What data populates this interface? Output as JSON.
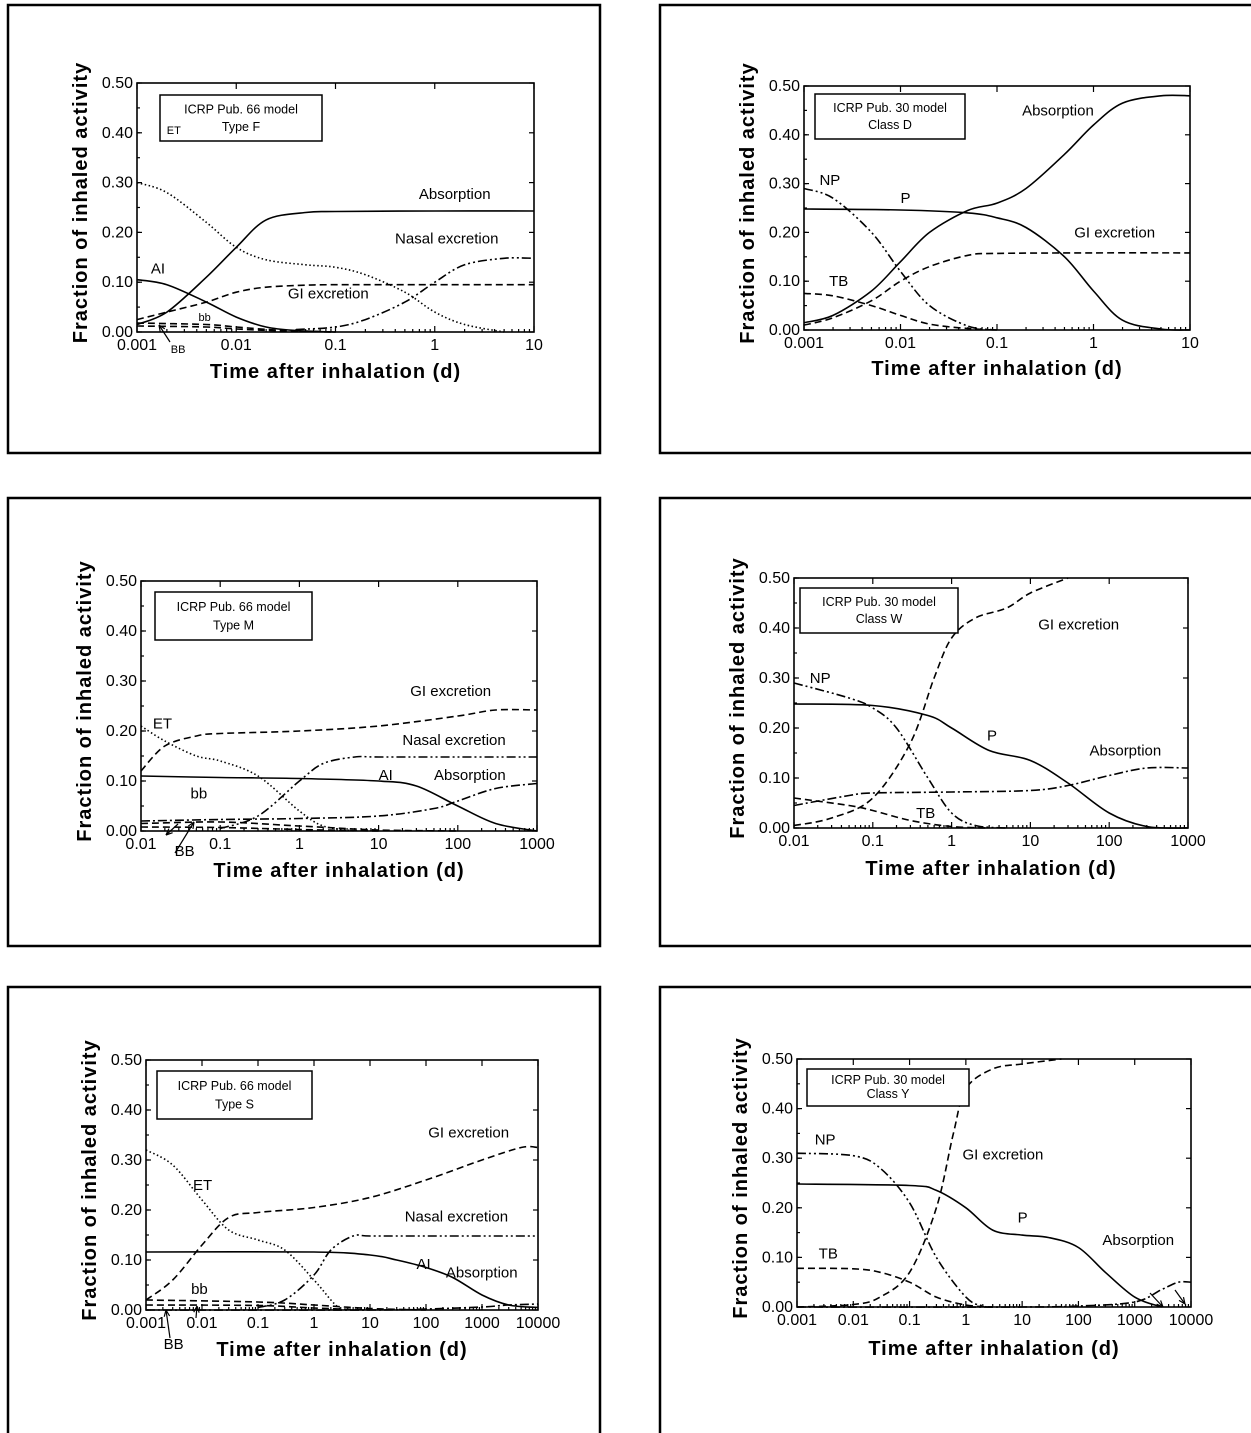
{
  "chart_data": [
    {
      "type": "line",
      "legend": [
        "ICRP Pub. 66 model",
        "Type F"
      ],
      "xlabel": "Time after inhalation (d)",
      "ylabel": "Fraction of inhaled activity",
      "xscale": "log",
      "xlim": [
        0.001,
        10
      ],
      "ylim": [
        0,
        0.5
      ],
      "xticks": [
        "0.001",
        "0.01",
        "0.1",
        "1",
        "10"
      ],
      "yticks": [
        "0.00",
        "0.10",
        "0.20",
        "0.30",
        "0.40",
        "0.50"
      ],
      "series": [
        {
          "name": "ET",
          "style": "dotted",
          "x": [
            0.001,
            0.002,
            0.005,
            0.01,
            0.02,
            0.05,
            0.1,
            0.2,
            0.5,
            1,
            2,
            5
          ],
          "y": [
            0.3,
            0.28,
            0.22,
            0.17,
            0.145,
            0.135,
            0.13,
            0.115,
            0.08,
            0.04,
            0.015,
            0.0
          ]
        },
        {
          "name": "Absorption",
          "style": "solid",
          "x": [
            0.001,
            0.002,
            0.005,
            0.01,
            0.02,
            0.05,
            0.1,
            1,
            10
          ],
          "y": [
            0.015,
            0.04,
            0.11,
            0.17,
            0.225,
            0.24,
            0.242,
            0.243,
            0.243
          ]
        },
        {
          "name": "Nasal excretion",
          "style": "dash-dot-dot",
          "x": [
            0.04,
            0.1,
            0.2,
            0.5,
            1,
            2,
            5,
            10
          ],
          "y": [
            0.005,
            0.01,
            0.025,
            0.06,
            0.1,
            0.135,
            0.148,
            0.148
          ]
        },
        {
          "name": "GI excretion",
          "style": "dashed",
          "x": [
            0.001,
            0.002,
            0.005,
            0.01,
            0.02,
            0.05,
            0.1,
            1,
            10
          ],
          "y": [
            0.025,
            0.04,
            0.06,
            0.08,
            0.09,
            0.094,
            0.095,
            0.095,
            0.095
          ]
        },
        {
          "name": "AI",
          "style": "solid",
          "x": [
            0.001,
            0.002,
            0.005,
            0.01,
            0.02,
            0.04,
            0.1
          ],
          "y": [
            0.105,
            0.095,
            0.06,
            0.03,
            0.01,
            0.003,
            0.0
          ]
        },
        {
          "name": "bb",
          "style": "dashed",
          "x": [
            0.001,
            0.005,
            0.01,
            0.03,
            0.1
          ],
          "y": [
            0.018,
            0.015,
            0.01,
            0.003,
            0.0
          ]
        },
        {
          "name": "BB",
          "style": "dashed",
          "x": [
            0.001,
            0.005,
            0.01,
            0.03,
            0.1
          ],
          "y": [
            0.012,
            0.01,
            0.006,
            0.002,
            0.0
          ]
        }
      ],
      "annotations": [
        "ET",
        "Absorption",
        "Nasal excretion",
        "GI excretion",
        "AI",
        "bb",
        "BB"
      ]
    },
    {
      "type": "line",
      "legend": [
        "ICRP Pub. 30 model",
        "Class D"
      ],
      "xlabel": "Time after inhalation (d)",
      "ylabel": "Fraction of inhaled activity",
      "xscale": "log",
      "xlim": [
        0.001,
        10
      ],
      "ylim": [
        0,
        0.5
      ],
      "xticks": [
        "0.001",
        "0.01",
        "0.1",
        "1",
        "10"
      ],
      "yticks": [
        "0.00",
        "0.10",
        "0.20",
        "0.30",
        "0.40",
        "0.50"
      ],
      "series": [
        {
          "name": "Absorption",
          "style": "solid",
          "x": [
            0.001,
            0.002,
            0.005,
            0.01,
            0.02,
            0.05,
            0.1,
            0.2,
            0.5,
            1,
            2,
            5,
            10
          ],
          "y": [
            0.015,
            0.03,
            0.08,
            0.14,
            0.2,
            0.245,
            0.26,
            0.29,
            0.36,
            0.42,
            0.465,
            0.48,
            0.48
          ]
        },
        {
          "name": "NP",
          "style": "dash-dot-dot",
          "x": [
            0.001,
            0.002,
            0.005,
            0.01,
            0.02,
            0.05,
            0.1
          ],
          "y": [
            0.29,
            0.27,
            0.2,
            0.12,
            0.05,
            0.008,
            0.0
          ]
        },
        {
          "name": "P",
          "style": "solid",
          "x": [
            0.001,
            0.01,
            0.05,
            0.1,
            0.2,
            0.5,
            1,
            2,
            5,
            10
          ],
          "y": [
            0.248,
            0.246,
            0.24,
            0.23,
            0.21,
            0.15,
            0.08,
            0.02,
            0.002,
            0.0
          ]
        },
        {
          "name": "GI excretion",
          "style": "dashed",
          "x": [
            0.001,
            0.002,
            0.005,
            0.01,
            0.02,
            0.05,
            0.1,
            1,
            10
          ],
          "y": [
            0.01,
            0.025,
            0.06,
            0.1,
            0.13,
            0.153,
            0.157,
            0.158,
            0.158
          ]
        },
        {
          "name": "TB",
          "style": "dashed",
          "x": [
            0.001,
            0.002,
            0.005,
            0.01,
            0.02,
            0.05,
            0.1
          ],
          "y": [
            0.075,
            0.07,
            0.05,
            0.03,
            0.012,
            0.003,
            0.0
          ]
        }
      ],
      "annotations": [
        "Absorption",
        "NP",
        "P",
        "GI excretion",
        "TB"
      ]
    },
    {
      "type": "line",
      "legend": [
        "ICRP Pub. 66 model",
        "Type M"
      ],
      "xlabel": "Time after inhalation (d)",
      "ylabel": "Fraction of inhaled activity",
      "xscale": "log",
      "xlim": [
        0.01,
        1000
      ],
      "ylim": [
        0,
        0.5
      ],
      "xticks": [
        "0.01",
        "0.1",
        "1",
        "10",
        "100",
        "1000"
      ],
      "yticks": [
        "0.00",
        "0.10",
        "0.20",
        "0.30",
        "0.40",
        "0.50"
      ],
      "series": [
        {
          "name": "GI excretion",
          "style": "dashed",
          "x": [
            0.01,
            0.02,
            0.05,
            0.1,
            1,
            10,
            100,
            300,
            1000
          ],
          "y": [
            0.12,
            0.17,
            0.19,
            0.195,
            0.2,
            0.21,
            0.23,
            0.242,
            0.242
          ]
        },
        {
          "name": "ET",
          "style": "dotted",
          "x": [
            0.01,
            0.02,
            0.05,
            0.1,
            0.3,
            1,
            2,
            5
          ],
          "y": [
            0.21,
            0.18,
            0.15,
            0.14,
            0.11,
            0.04,
            0.01,
            0.0
          ]
        },
        {
          "name": "Nasal excretion",
          "style": "dash-dot-dot",
          "x": [
            0.1,
            0.3,
            1,
            2,
            5,
            10,
            100,
            1000
          ],
          "y": [
            0.005,
            0.03,
            0.1,
            0.135,
            0.148,
            0.148,
            0.148,
            0.148
          ]
        },
        {
          "name": "AI",
          "style": "solid",
          "x": [
            0.01,
            0.1,
            1,
            10,
            30,
            100,
            300,
            1000
          ],
          "y": [
            0.11,
            0.107,
            0.105,
            0.1,
            0.09,
            0.05,
            0.015,
            0.0
          ]
        },
        {
          "name": "Absorption",
          "style": "dash-dot",
          "x": [
            0.01,
            0.1,
            1,
            10,
            50,
            100,
            300,
            1000
          ],
          "y": [
            0.02,
            0.023,
            0.025,
            0.03,
            0.045,
            0.06,
            0.085,
            0.095
          ]
        },
        {
          "name": "bb",
          "style": "dashed",
          "x": [
            0.01,
            0.1,
            1,
            10,
            100
          ],
          "y": [
            0.015,
            0.018,
            0.01,
            0.002,
            0.0
          ]
        },
        {
          "name": "BB",
          "style": "dashed",
          "x": [
            0.01,
            0.1,
            1,
            10
          ],
          "y": [
            0.008,
            0.007,
            0.003,
            0.0
          ]
        }
      ],
      "annotations": [
        "GI excretion",
        "ET",
        "Nasal excretion",
        "AI",
        "Absorption",
        "bb",
        "BB"
      ]
    },
    {
      "type": "line",
      "legend": [
        "ICRP Pub. 30 model",
        "Class W"
      ],
      "xlabel": "Time after inhalation (d)",
      "ylabel": "Fraction of inhaled activity",
      "xscale": "log",
      "xlim": [
        0.01,
        1000
      ],
      "ylim": [
        0,
        0.5
      ],
      "xticks": [
        "0.01",
        "0.1",
        "1",
        "10",
        "100",
        "1000"
      ],
      "yticks": [
        "0.00",
        "0.10",
        "0.20",
        "0.30",
        "0.40",
        "0.50"
      ],
      "series": [
        {
          "name": "GI excretion",
          "style": "dashed",
          "x": [
            0.01,
            0.03,
            0.1,
            0.3,
            0.6,
            1,
            2,
            5,
            10,
            30
          ],
          "y": [
            0.005,
            0.02,
            0.06,
            0.17,
            0.3,
            0.38,
            0.42,
            0.44,
            0.47,
            0.5
          ]
        },
        {
          "name": "NP",
          "style": "dash-dot-dot",
          "x": [
            0.01,
            0.05,
            0.1,
            0.2,
            0.5,
            1,
            2,
            5
          ],
          "y": [
            0.29,
            0.26,
            0.24,
            0.2,
            0.1,
            0.03,
            0.005,
            0.0
          ]
        },
        {
          "name": "P",
          "style": "solid",
          "x": [
            0.01,
            0.1,
            0.5,
            1,
            3,
            10,
            30,
            100,
            300,
            1000
          ],
          "y": [
            0.248,
            0.245,
            0.225,
            0.2,
            0.155,
            0.135,
            0.09,
            0.03,
            0.003,
            0.0
          ]
        },
        {
          "name": "Absorption",
          "style": "dash-dot",
          "x": [
            0.01,
            0.05,
            0.1,
            1,
            10,
            30,
            100,
            300,
            1000
          ],
          "y": [
            0.045,
            0.065,
            0.07,
            0.072,
            0.075,
            0.085,
            0.105,
            0.12,
            0.12
          ]
        },
        {
          "name": "TB",
          "style": "dashed",
          "x": [
            0.01,
            0.05,
            0.1,
            0.3,
            1,
            3
          ],
          "y": [
            0.06,
            0.045,
            0.035,
            0.015,
            0.003,
            0.0
          ]
        }
      ],
      "annotations": [
        "GI excretion",
        "NP",
        "P",
        "Absorption",
        "TB"
      ]
    },
    {
      "type": "line",
      "legend": [
        "ICRP Pub. 66 model",
        "Type S"
      ],
      "xlabel": "Time after inhalation (d)",
      "ylabel": "Fraction of inhaled activity",
      "xscale": "log",
      "xlim": [
        0.001,
        10000
      ],
      "ylim": [
        0,
        0.5
      ],
      "xticks": [
        "0.001",
        "0.01",
        "0.1",
        "1",
        "10",
        "100",
        "1000",
        "10000"
      ],
      "yticks": [
        "0.00",
        "0.10",
        "0.20",
        "0.30",
        "0.40",
        "0.50"
      ],
      "series": [
        {
          "name": "GI excretion",
          "style": "dashed",
          "x": [
            0.001,
            0.003,
            0.01,
            0.03,
            0.1,
            1,
            10,
            100,
            1000,
            5000,
            10000
          ],
          "y": [
            0.02,
            0.06,
            0.13,
            0.185,
            0.195,
            0.205,
            0.225,
            0.26,
            0.3,
            0.325,
            0.325
          ]
        },
        {
          "name": "ET",
          "style": "dotted",
          "x": [
            0.001,
            0.003,
            0.01,
            0.03,
            0.1,
            0.3,
            1,
            2,
            3
          ],
          "y": [
            0.32,
            0.29,
            0.22,
            0.16,
            0.14,
            0.12,
            0.06,
            0.02,
            0.0
          ]
        },
        {
          "name": "Nasal excretion",
          "style": "dash-dot-dot",
          "x": [
            0.1,
            0.3,
            1,
            2,
            5,
            10,
            100,
            1000,
            10000
          ],
          "y": [
            0.005,
            0.02,
            0.07,
            0.12,
            0.148,
            0.148,
            0.148,
            0.148,
            0.148
          ]
        },
        {
          "name": "AI",
          "style": "solid",
          "x": [
            0.001,
            1,
            10,
            30,
            100,
            300,
            1000,
            3000,
            10000
          ],
          "y": [
            0.116,
            0.116,
            0.11,
            0.1,
            0.085,
            0.065,
            0.03,
            0.01,
            0.005
          ]
        },
        {
          "name": "Absorption",
          "style": "dash-dot",
          "x": [
            0.001,
            10,
            100,
            1000,
            3000,
            10000
          ],
          "y": [
            0.0,
            0.0,
            0.002,
            0.006,
            0.01,
            0.012
          ]
        },
        {
          "name": "bb",
          "style": "dashed",
          "x": [
            0.001,
            0.1,
            1,
            10,
            100
          ],
          "y": [
            0.02,
            0.016,
            0.01,
            0.003,
            0.0
          ]
        },
        {
          "name": "BB",
          "style": "dashed",
          "x": [
            0.001,
            0.1,
            1,
            10
          ],
          "y": [
            0.01,
            0.009,
            0.004,
            0.0
          ]
        }
      ],
      "annotations": [
        "GI excretion",
        "ET",
        "Nasal excretion",
        "AI",
        "Absorption",
        "bb",
        "BB"
      ]
    },
    {
      "type": "line",
      "legend": [
        "ICRP Pub. 30 model",
        "Class Y"
      ],
      "xlabel": "Time after inhalation (d)",
      "ylabel": "Fraction of inhaled activity",
      "xscale": "log",
      "xlim": [
        0.001,
        10000
      ],
      "ylim": [
        0,
        0.5
      ],
      "xticks": [
        "0.001",
        "0.01",
        "0.1",
        "1",
        "10",
        "100",
        "1000",
        "10000"
      ],
      "yticks": [
        "0.00",
        "0.10",
        "0.20",
        "0.30",
        "0.40",
        "0.50"
      ],
      "series": [
        {
          "name": "GI excretion",
          "style": "dashed",
          "x": [
            0.001,
            0.01,
            0.03,
            0.1,
            0.3,
            0.6,
            1,
            3,
            10,
            50
          ],
          "y": [
            0.0,
            0.005,
            0.02,
            0.07,
            0.2,
            0.35,
            0.44,
            0.48,
            0.49,
            0.5
          ]
        },
        {
          "name": "NP",
          "style": "dash-dot-dot",
          "x": [
            0.001,
            0.01,
            0.03,
            0.1,
            0.3,
            1,
            2,
            3
          ],
          "y": [
            0.31,
            0.305,
            0.28,
            0.21,
            0.1,
            0.02,
            0.002,
            0.0
          ]
        },
        {
          "name": "P",
          "style": "solid",
          "x": [
            0.001,
            0.1,
            0.3,
            1,
            3,
            10,
            30,
            100,
            300,
            1000,
            3000
          ],
          "y": [
            0.248,
            0.245,
            0.235,
            0.2,
            0.155,
            0.145,
            0.14,
            0.12,
            0.07,
            0.02,
            0.0
          ]
        },
        {
          "name": "TB",
          "style": "dashed",
          "x": [
            0.001,
            0.01,
            0.03,
            0.1,
            0.3,
            1,
            3
          ],
          "y": [
            0.078,
            0.077,
            0.07,
            0.05,
            0.02,
            0.004,
            0.0
          ]
        },
        {
          "name": "Absorption",
          "style": "dash-dot",
          "x": [
            0.001,
            10,
            100,
            1000,
            3000,
            6000,
            10000
          ],
          "y": [
            0.0,
            0.0,
            0.002,
            0.01,
            0.035,
            0.05,
            0.05
          ]
        }
      ],
      "annotations": [
        "NP",
        "GI excretion",
        "TB",
        "P",
        "Absorption"
      ]
    }
  ]
}
